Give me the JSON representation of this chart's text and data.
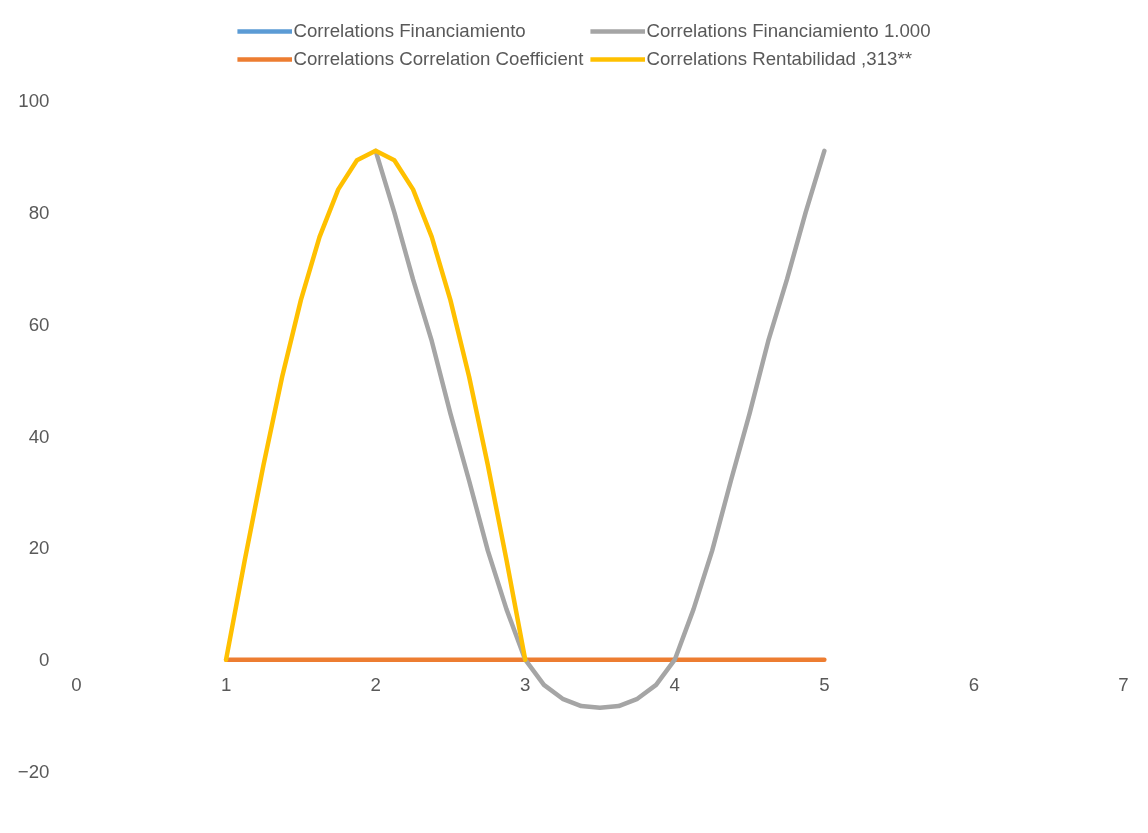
{
  "chart_data": {
    "type": "line",
    "xlim": [
      0,
      7
    ],
    "xticks": [
      0,
      1,
      2,
      3,
      4,
      5,
      6,
      7
    ],
    "ylim": [
      -20,
      100
    ],
    "yticks": [
      -20,
      0,
      20,
      40,
      60,
      80,
      100
    ],
    "grid": false,
    "legend": "top",
    "marker": "none",
    "line_style": "solid",
    "series": [
      {
        "name": "Correlations Financiamiento",
        "color": "#5b9bd5",
        "values": [
          null
        ]
      },
      {
        "name": "Correlations Correlation Coefficient",
        "color": "#ed7d31",
        "x": [
          1,
          2,
          3,
          4,
          5
        ],
        "values": [
          0,
          0,
          0,
          0,
          0
        ]
      },
      {
        "name": "Correlations Financiamiento 1.000",
        "color": "#a5a5a5",
        "x": [
          2,
          2.125,
          2.25,
          2.375,
          2.5,
          2.625,
          2.75,
          2.875,
          3,
          3.125,
          3.25,
          3.375,
          3.5,
          3.625,
          3.75,
          3.875,
          4,
          4.125,
          4.25,
          4.375,
          4.5,
          4.625,
          4.75,
          4.875,
          5
        ],
        "values": [
          91,
          80,
          68,
          57,
          44,
          32,
          19.5,
          9,
          0,
          -4.5,
          -7,
          -8.3,
          -8.6,
          -8.3,
          -7,
          -4.5,
          0,
          9,
          19.5,
          32,
          44,
          57,
          68,
          80,
          91
        ]
      },
      {
        "name": "Correlations Rentabilidad ,313**",
        "color": "#ffc000",
        "x": [
          1,
          1.125,
          1.25,
          1.375,
          1.5,
          1.625,
          1.75,
          1.875,
          2,
          2.125,
          2.25,
          2.375,
          2.5,
          2.625,
          2.75,
          2.875,
          3
        ],
        "values": [
          0,
          17.8,
          34.8,
          50.6,
          64.3,
          75.6,
          84.1,
          89.3,
          91,
          89.3,
          84.1,
          75.6,
          64.3,
          50.6,
          34.8,
          17.8,
          0
        ]
      }
    ]
  }
}
